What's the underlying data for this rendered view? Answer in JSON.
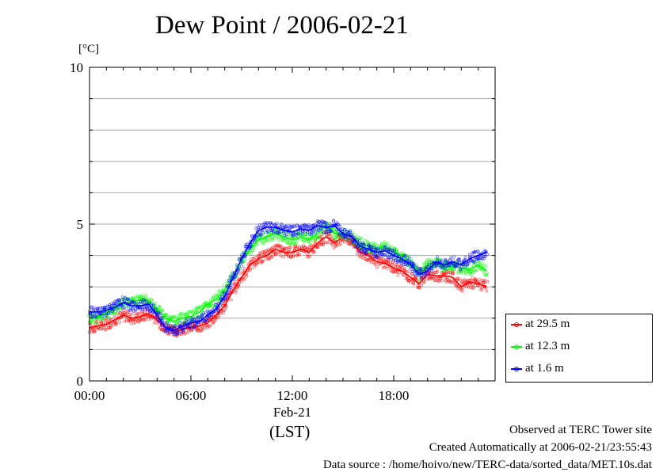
{
  "title": "Dew Point / 2006-02-21",
  "unit_label": "[°C]",
  "footer": {
    "line1": "Observed at TERC Tower site",
    "line2": "Created Automatically at 2006-02-21/23:55:43",
    "line3": "Data source : /home/hoivo/new/TERC-data/sorted_data/MET.10s.dat"
  },
  "legend": {
    "item1": "at 29.5 m",
    "item2": "at 12.3 m",
    "item3": "at 1.6 m"
  },
  "colors": {
    "at_29_5m": "#ff0000",
    "at_12_3m": "#00ff00",
    "at_1_6m": "#0000ff"
  },
  "chart_data": {
    "type": "line",
    "title": "Dew Point / 2006-02-21",
    "xlabel": "(LST)",
    "x_date_label": "Feb-21",
    "ylabel": "[°C]",
    "xlim": [
      0,
      24
    ],
    "ylim": [
      0,
      10
    ],
    "x_ticks": [
      "00:00",
      "06:00",
      "12:00",
      "18:00"
    ],
    "y_ticks": [
      "0",
      "5",
      "10"
    ],
    "grid": true,
    "legend_position": "bottom-right outside",
    "x": [
      0.0,
      0.5,
      1.0,
      1.5,
      2.0,
      2.5,
      3.0,
      3.5,
      4.0,
      4.5,
      5.0,
      5.5,
      6.0,
      6.5,
      7.0,
      7.5,
      8.0,
      8.5,
      9.0,
      9.5,
      10.0,
      10.5,
      11.0,
      11.5,
      12.0,
      12.5,
      13.0,
      13.5,
      14.0,
      14.5,
      15.0,
      15.5,
      16.0,
      16.5,
      17.0,
      17.5,
      18.0,
      18.5,
      19.0,
      19.5,
      20.0,
      20.5,
      21.0,
      21.5,
      22.0,
      22.5,
      23.0,
      23.5
    ],
    "series": [
      {
        "name": "at 29.5 m",
        "values": [
          1.7,
          1.75,
          1.8,
          1.95,
          2.1,
          2.0,
          2.05,
          2.15,
          1.95,
          1.7,
          1.55,
          1.65,
          1.7,
          1.75,
          1.85,
          2.1,
          2.4,
          2.9,
          3.3,
          3.7,
          3.9,
          4.0,
          4.2,
          4.1,
          4.1,
          4.2,
          4.1,
          4.4,
          4.6,
          4.4,
          4.6,
          4.5,
          4.1,
          4.0,
          3.8,
          3.75,
          3.6,
          3.5,
          3.3,
          3.1,
          3.4,
          3.35,
          3.35,
          3.3,
          3.0,
          3.15,
          3.1,
          3.0
        ]
      },
      {
        "name": "at 12.3 m",
        "values": [
          2.0,
          2.05,
          2.15,
          2.3,
          2.5,
          2.5,
          2.6,
          2.55,
          2.3,
          2.0,
          1.9,
          2.0,
          2.05,
          2.2,
          2.45,
          2.6,
          2.9,
          3.3,
          3.9,
          4.2,
          4.5,
          4.6,
          4.7,
          4.6,
          4.5,
          4.6,
          4.5,
          4.7,
          4.95,
          4.7,
          4.7,
          4.6,
          4.4,
          4.3,
          4.2,
          4.3,
          4.1,
          4.0,
          3.8,
          3.4,
          3.7,
          3.8,
          3.65,
          3.65,
          3.6,
          3.55,
          3.7,
          3.5
        ]
      },
      {
        "name": "at 1.6 m",
        "values": [
          2.2,
          2.2,
          2.25,
          2.35,
          2.5,
          2.4,
          2.4,
          2.45,
          2.1,
          1.7,
          1.6,
          1.75,
          1.85,
          1.9,
          2.1,
          2.3,
          2.7,
          3.3,
          3.9,
          4.4,
          4.8,
          4.9,
          4.9,
          4.8,
          4.75,
          4.85,
          4.8,
          4.95,
          4.9,
          4.95,
          4.7,
          4.6,
          4.3,
          4.2,
          4.1,
          4.15,
          4.0,
          3.9,
          3.7,
          3.4,
          3.5,
          3.8,
          3.7,
          3.8,
          3.7,
          3.9,
          4.0,
          4.1
        ]
      }
    ]
  }
}
